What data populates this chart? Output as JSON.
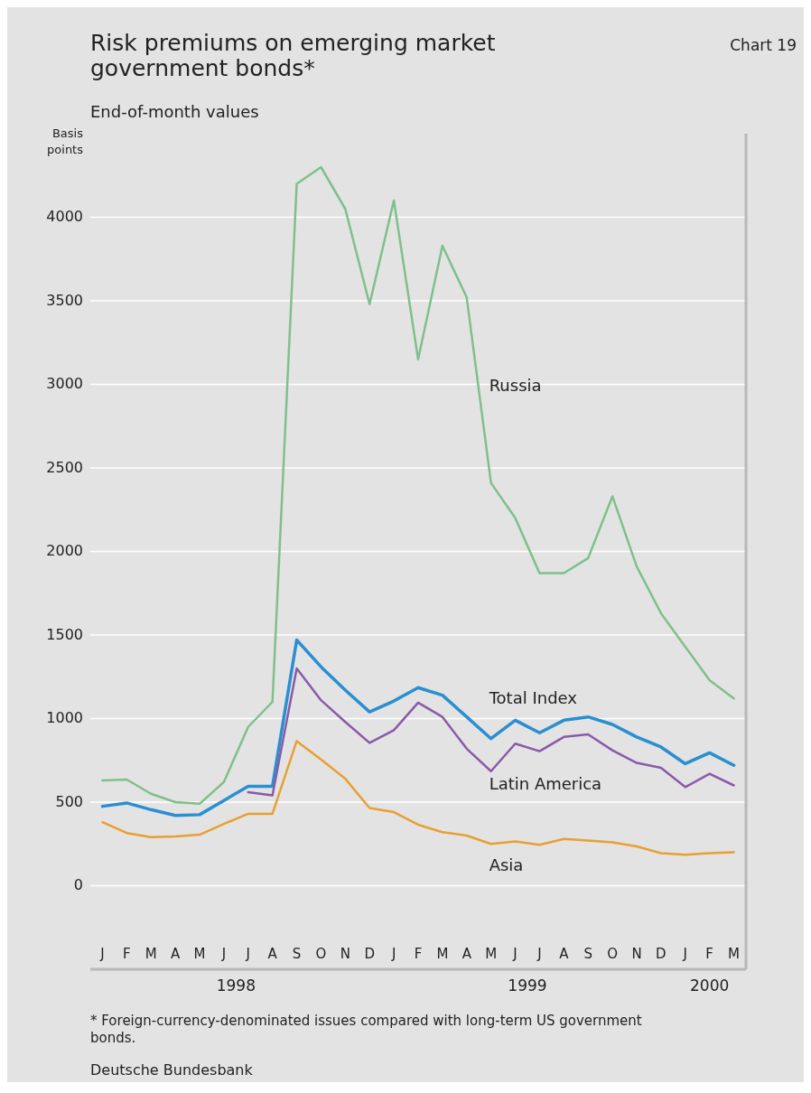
{
  "chart_data": {
    "type": "line",
    "title": "Risk premiums on emerging market government bonds*",
    "subtitle": "End-of-month values",
    "ylabel": "Basis points",
    "annotations": [
      "Chart 19",
      "* Foreign-currency-denominated issues compared with long-term US government bonds.",
      "Deutsche Bundesbank",
      "1998",
      "1999",
      "2000"
    ],
    "categories": [
      "J",
      "F",
      "M",
      "A",
      "M",
      "J",
      "J",
      "A",
      "S",
      "O",
      "N",
      "D",
      "J",
      "F",
      "M",
      "A",
      "M",
      "J",
      "J",
      "A",
      "S",
      "O",
      "N",
      "D",
      "J",
      "F",
      "M"
    ],
    "series": [
      {
        "name": "Russia",
        "color": "#7fc08a",
        "values": [
          630,
          635,
          550,
          500,
          490,
          620,
          950,
          1100,
          4200,
          4300,
          4050,
          3480,
          4100,
          3150,
          3830,
          3520,
          2410,
          2200,
          1870,
          1870,
          1960,
          2330,
          1910,
          1630,
          1430,
          1230,
          1120
        ]
      },
      {
        "name": "Total Index",
        "color": "#2a8fd0",
        "values": [
          475,
          495,
          455,
          420,
          425,
          510,
          595,
          595,
          1470,
          1310,
          1170,
          1040,
          1105,
          1185,
          1140,
          1010,
          880,
          990,
          915,
          990,
          1010,
          965,
          890,
          830,
          730,
          795,
          720
        ]
      },
      {
        "name": "Latin America",
        "color": "#8a5aa8",
        "values": [
          null,
          null,
          null,
          null,
          null,
          null,
          560,
          540,
          1300,
          1110,
          980,
          855,
          930,
          1095,
          1010,
          820,
          685,
          850,
          805,
          890,
          905,
          810,
          735,
          705,
          590,
          670,
          600
        ]
      },
      {
        "name": "Asia",
        "color": "#e8a030",
        "values": [
          380,
          315,
          290,
          295,
          305,
          370,
          430,
          430,
          865,
          755,
          640,
          465,
          440,
          365,
          320,
          300,
          250,
          265,
          245,
          280,
          270,
          260,
          235,
          195,
          185,
          195,
          200
        ]
      }
    ],
    "ylim": [
      -500,
      4500
    ],
    "yticks": [
      0,
      500,
      1000,
      1500,
      2000,
      2500,
      3000,
      3500,
      4000
    ],
    "grid": "y"
  }
}
